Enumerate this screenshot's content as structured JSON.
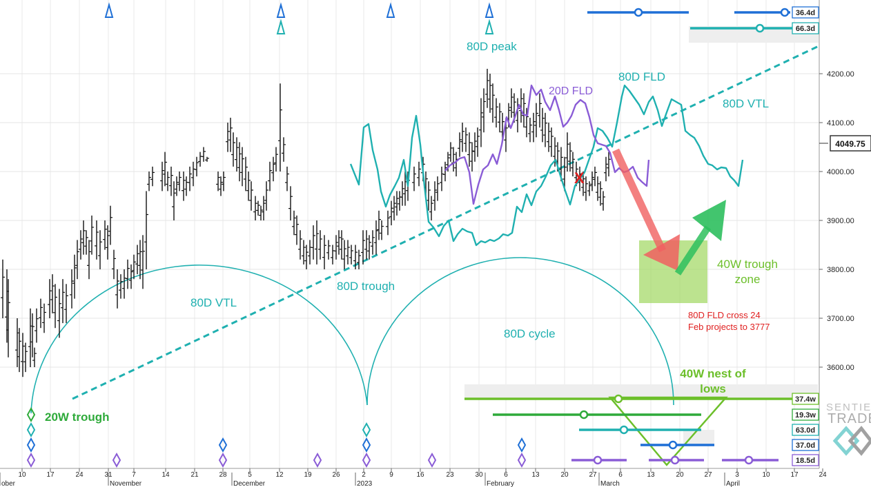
{
  "chart_data": {
    "type": "ohlc-cycle-analysis",
    "price_axis": {
      "ticks": [
        "4200.00",
        "4100.00",
        "4000.00",
        "3900.00",
        "3800.00",
        "3700.00",
        "3600.00"
      ],
      "current_price": "4049.75"
    },
    "date_axis": {
      "day_ticks": [
        "10",
        "17",
        "24",
        "31",
        "7",
        "14",
        "21",
        "28",
        "5",
        "12",
        "19",
        "26",
        "2",
        "9",
        "16",
        "23",
        "30",
        "6",
        "13",
        "20",
        "27",
        "6",
        "13",
        "20",
        "27",
        "3",
        "10",
        "17",
        "24"
      ],
      "month_labels": [
        {
          "label": "ober",
          "at_tick": 0
        },
        {
          "label": "November",
          "at_tick": 4
        },
        {
          "label": "December",
          "at_tick": 8
        },
        {
          "label": "2023",
          "at_tick": 12
        },
        {
          "label": "February",
          "at_tick": 17
        },
        {
          "label": "March",
          "at_tick": 21
        },
        {
          "label": "April",
          "at_tick": 25
        }
      ]
    },
    "annotations": {
      "peak_80d": "80D peak",
      "fld_80d": "80D FLD",
      "fld_20d": "20D FLD",
      "vtl_80d_upper": "80D VTL",
      "vtl_80d_lower": "80D VTL",
      "trough_80d": "80D trough",
      "cycle_80d": "80D cycle",
      "trough_20w": "20W trough",
      "trough_zone_40w": "40W trough\nzone",
      "nest_40w": "40W nest of\nlows",
      "projection_note": "80D FLD cross 24\nFeb projects to 3777",
      "cross_marker": "X"
    },
    "cycle_labels": [
      "36.4d",
      "66.3d",
      "37.4w",
      "19.3w",
      "63.0d",
      "37.0d",
      "18.5d"
    ],
    "watermark": "SENTIENT TRADER",
    "colors": {
      "price_bars": "#111111",
      "fld_80d": "#1fb0b0",
      "fld_20d": "#8a5cd6",
      "cycle_80d": "#1fb0b0",
      "cycle_40w": "#6cbf2a",
      "cycle_20w": "#2eaa3a",
      "cycle_37d": "#1e6fd6",
      "projection": "#f06060",
      "trough_zone": "#a6d96a",
      "projection_text": "#e02020"
    }
  }
}
